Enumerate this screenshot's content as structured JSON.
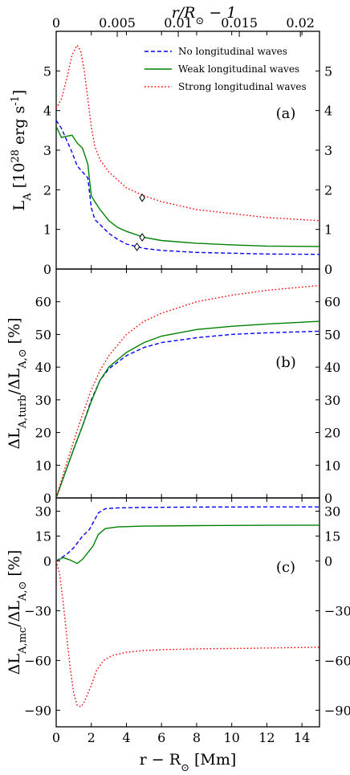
{
  "chart_data": [
    {
      "type": "line",
      "panel_label": "(a)",
      "ylabel": "L_A [10^28 erg s^-1]",
      "xlabel_top": "r/R_⊙ − 1",
      "xlim": [
        0,
        15
      ],
      "ylim": [
        0,
        6
      ],
      "top_xlim": [
        0,
        0.02157
      ],
      "x_ticks": [
        0,
        2,
        4,
        6,
        8,
        10,
        12,
        14
      ],
      "y_ticks": [
        0,
        1,
        2,
        3,
        4,
        5
      ],
      "top_ticks": [
        0,
        0.005,
        0.01,
        0.015,
        0.02
      ],
      "top_tick_labels": [
        "0",
        "0.005",
        "0.01",
        "0.015",
        "0.02"
      ],
      "grid": false,
      "legend_position": "top-right",
      "series": [
        {
          "name": "No longitudinal waves",
          "color": "#0000ff",
          "dash": "dashed",
          "x": [
            0,
            0.3,
            0.6,
            0.9,
            1.2,
            1.5,
            1.8,
            2.0,
            2.2,
            2.5,
            3,
            3.5,
            4,
            5,
            6,
            8,
            10,
            12,
            15
          ],
          "y": [
            3.75,
            3.55,
            3.25,
            2.95,
            2.6,
            2.45,
            2.3,
            1.55,
            1.25,
            1.12,
            0.9,
            0.75,
            0.63,
            0.52,
            0.47,
            0.42,
            0.4,
            0.38,
            0.37
          ],
          "marker": {
            "x": 4.6,
            "y": 0.56,
            "symbol": "diamond"
          }
        },
        {
          "name": "Weak longitudinal waves",
          "color": "#008000",
          "dash": "solid",
          "x": [
            0,
            0.3,
            0.6,
            0.9,
            1.2,
            1.5,
            1.8,
            2.0,
            2.2,
            2.5,
            3,
            3.5,
            4,
            5,
            6,
            8,
            10,
            12,
            15
          ],
          "y": [
            3.6,
            3.32,
            3.35,
            3.38,
            3.18,
            3.05,
            2.65,
            1.85,
            1.7,
            1.5,
            1.22,
            1.05,
            0.95,
            0.8,
            0.72,
            0.65,
            0.61,
            0.58,
            0.57
          ],
          "marker": {
            "x": 4.9,
            "y": 0.8,
            "symbol": "diamond"
          }
        },
        {
          "name": "Strong longitudinal waves",
          "color": "#ff0000",
          "dash": "dotted",
          "x": [
            0,
            0.3,
            0.6,
            0.9,
            1.2,
            1.4,
            1.6,
            1.8,
            2.0,
            2.2,
            2.5,
            3,
            3.5,
            4,
            5,
            6,
            8,
            10,
            12,
            15
          ],
          "y": [
            4.05,
            4.3,
            4.8,
            5.4,
            5.65,
            5.5,
            5.0,
            4.3,
            3.6,
            3.1,
            2.75,
            2.45,
            2.25,
            2.05,
            1.85,
            1.7,
            1.5,
            1.4,
            1.3,
            1.22
          ],
          "marker": {
            "x": 4.9,
            "y": 1.8,
            "symbol": "diamond"
          }
        }
      ]
    },
    {
      "type": "line",
      "panel_label": "(b)",
      "ylabel": "ΔL_A,turb/ΔL_A,⊙ [%]",
      "xlim": [
        0,
        15
      ],
      "ylim": [
        0,
        70
      ],
      "x_ticks": [
        0,
        2,
        4,
        6,
        8,
        10,
        12,
        14
      ],
      "y_ticks": [
        0,
        10,
        20,
        30,
        40,
        50,
        60
      ],
      "grid": false,
      "series": [
        {
          "name": "No longitudinal waves",
          "color": "#0000ff",
          "dash": "dashed",
          "x": [
            0,
            0.5,
            1,
            1.5,
            2,
            2.5,
            3,
            4,
            5,
            6,
            8,
            10,
            12,
            15
          ],
          "y": [
            0,
            7.5,
            15,
            22,
            30,
            36,
            39.5,
            43.5,
            46,
            47.5,
            49,
            50,
            50.5,
            51
          ]
        },
        {
          "name": "Weak longitudinal waves",
          "color": "#008000",
          "dash": "solid",
          "x": [
            0,
            0.5,
            1,
            1.5,
            2,
            2.5,
            3,
            4,
            5,
            6,
            8,
            10,
            12,
            15
          ],
          "y": [
            0,
            7.5,
            15,
            22,
            29.5,
            36,
            40,
            44.5,
            47.5,
            49.5,
            51.5,
            52.5,
            53.2,
            54
          ]
        },
        {
          "name": "Strong longitudinal waves",
          "color": "#ff0000",
          "dash": "dotted",
          "x": [
            0,
            0.5,
            1,
            1.5,
            2,
            2.5,
            3,
            4,
            5,
            6,
            8,
            10,
            12,
            15
          ],
          "y": [
            0,
            9,
            17.5,
            25.5,
            33,
            39,
            43.5,
            50,
            54,
            56.5,
            60,
            62,
            63.5,
            65
          ]
        }
      ]
    },
    {
      "type": "line",
      "panel_label": "(c)",
      "ylabel": "ΔL_A,mc/ΔL_A,⊙ [%]",
      "xlabel": "r − R_⊙ [Mm]",
      "xlim": [
        0,
        15
      ],
      "ylim": [
        -100,
        38
      ],
      "x_ticks": [
        0,
        2,
        4,
        6,
        8,
        10,
        12,
        14
      ],
      "y_ticks": [
        -90,
        -60,
        -30,
        0,
        15,
        30
      ],
      "grid": false,
      "series": [
        {
          "name": "No longitudinal waves",
          "color": "#0000ff",
          "dash": "dashed",
          "x": [
            0,
            0.3,
            0.6,
            1,
            1.5,
            1.9,
            2.1,
            2.4,
            2.8,
            3.5,
            5,
            8,
            12,
            15
          ],
          "y": [
            0,
            2,
            4,
            8,
            15,
            19,
            23,
            29,
            31.5,
            32,
            32.3,
            32.5,
            32.6,
            32.6
          ]
        },
        {
          "name": "Weak longitudinal waves",
          "color": "#008000",
          "dash": "solid",
          "x": [
            0,
            0.4,
            0.8,
            1.2,
            1.5,
            1.8,
            2.1,
            2.4,
            2.8,
            3.5,
            5,
            8,
            12,
            15
          ],
          "y": [
            0,
            2,
            0.5,
            -1.5,
            1,
            5,
            9,
            16,
            19.5,
            20.5,
            21,
            21.3,
            21.5,
            21.6
          ]
        },
        {
          "name": "Strong longitudinal waves",
          "color": "#ff0000",
          "dash": "dotted",
          "x": [
            0,
            0.2,
            0.4,
            0.6,
            0.8,
            1.0,
            1.2,
            1.4,
            1.6,
            1.8,
            2.0,
            2.3,
            2.7,
            3.2,
            4,
            5,
            6,
            8,
            10,
            12,
            15
          ],
          "y": [
            0,
            -8,
            -25,
            -45,
            -65,
            -80,
            -87,
            -88,
            -85,
            -80,
            -75,
            -66,
            -60,
            -57,
            -55,
            -54,
            -53.5,
            -53,
            -52.8,
            -52.5,
            -52
          ]
        }
      ]
    }
  ]
}
